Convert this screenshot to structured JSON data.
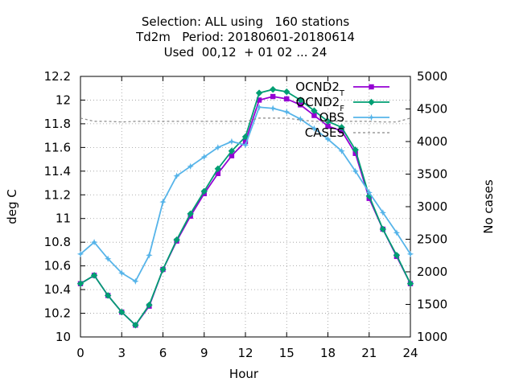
{
  "chart_data": {
    "type": "line",
    "title_lines": [
      "Selection: ALL using   160 stations",
      "Td2m   Period: 20180601-20180614",
      "Used  00,12  + 01 02 ... 24"
    ],
    "xlabel": "Hour",
    "ylabel": "deg C",
    "y2label": "No cases",
    "xlim": [
      0,
      24
    ],
    "ylim": [
      10,
      12.2
    ],
    "y2lim": [
      1000,
      5000
    ],
    "x_ticks": [
      "0",
      "3",
      "6",
      "9",
      "12",
      "15",
      "18",
      "21",
      "24"
    ],
    "y_ticks": [
      "10",
      "10.2",
      "10.4",
      "10.6",
      "10.8",
      "11",
      "11.2",
      "11.4",
      "11.6",
      "11.8",
      "12",
      "12.2"
    ],
    "y2_ticks": [
      "1000",
      "1500",
      "2000",
      "2500",
      "3000",
      "3500",
      "4000",
      "4500",
      "5000"
    ],
    "grid": true,
    "legend_position": "top-right",
    "x": [
      0,
      1,
      2,
      3,
      4,
      5,
      6,
      7,
      8,
      9,
      10,
      11,
      12,
      13,
      14,
      15,
      16,
      17,
      18,
      19,
      20,
      21,
      22,
      23,
      24
    ],
    "series": [
      {
        "name": "OCND2",
        "name_sub": "T",
        "color": "#9400d3",
        "marker": "square",
        "axis": "y",
        "values": [
          10.45,
          10.52,
          10.35,
          10.21,
          10.1,
          10.26,
          10.57,
          10.81,
          11.02,
          11.21,
          11.38,
          11.53,
          11.65,
          12.0,
          12.03,
          12.01,
          11.96,
          11.87,
          11.78,
          11.74,
          11.55,
          11.17,
          10.91,
          10.68,
          10.45
        ]
      },
      {
        "name": "OCND2",
        "name_sub": "F",
        "color": "#009e73",
        "marker": "diamond",
        "axis": "y",
        "values": [
          10.45,
          10.52,
          10.35,
          10.21,
          10.1,
          10.27,
          10.57,
          10.82,
          11.04,
          11.23,
          11.42,
          11.57,
          11.69,
          12.06,
          12.09,
          12.07,
          12.0,
          11.91,
          11.82,
          11.77,
          11.58,
          11.19,
          10.91,
          10.69,
          10.45
        ]
      },
      {
        "name": "OBS",
        "color": "#56b4e9",
        "marker": "star",
        "axis": "y",
        "values": [
          10.7,
          10.8,
          10.66,
          10.54,
          10.47,
          10.69,
          11.14,
          11.36,
          11.44,
          11.52,
          11.6,
          11.65,
          11.62,
          11.94,
          11.93,
          11.9,
          11.84,
          11.76,
          11.67,
          11.57,
          11.4,
          11.22,
          11.05,
          10.88,
          10.7
        ]
      },
      {
        "name": "CASES",
        "color": "#888888",
        "marker": "none",
        "dashed": true,
        "axis": "y2",
        "values": [
          4360,
          4310,
          4310,
          4300,
          4310,
          4310,
          4310,
          4310,
          4310,
          4310,
          4310,
          4310,
          4310,
          4360,
          4360,
          4360,
          4330,
          4310,
          4310,
          4310,
          4310,
          4310,
          4300,
          4300,
          4360
        ]
      }
    ]
  }
}
